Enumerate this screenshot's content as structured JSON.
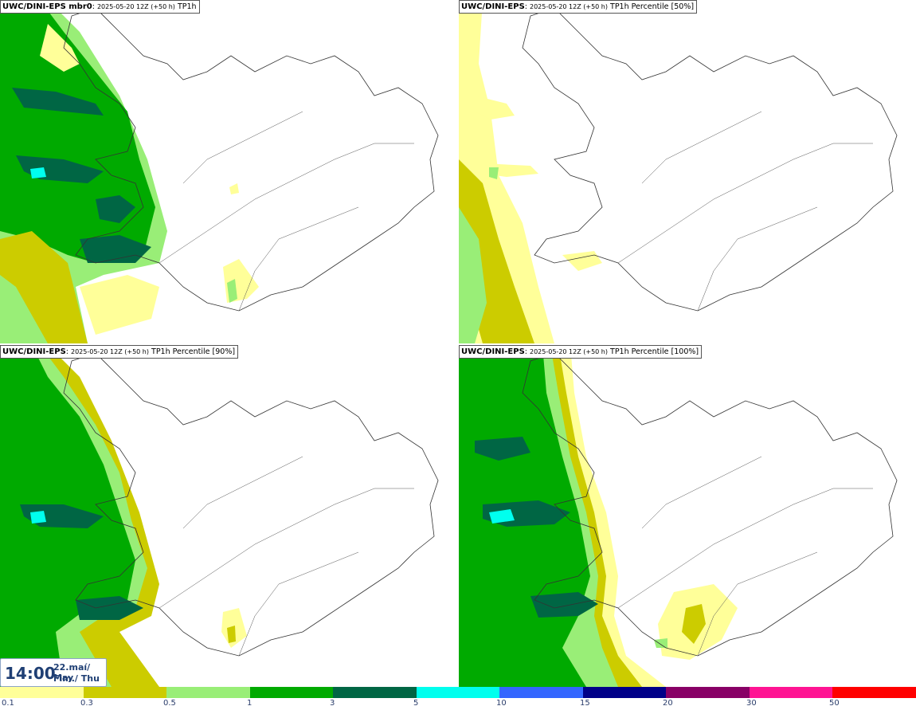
{
  "panels": [
    {
      "model": "UWC/DINI-EPS mbr0",
      "date": "2025-05-20 12Z (+50 h)",
      "product": "TP1h"
    },
    {
      "model": "UWC/DINI-EPS",
      "date": "2025-05-20 12Z (+50 h)",
      "product": "TP1h Percentile [50%]"
    },
    {
      "model": "UWC/DINI-EPS",
      "date": "2025-05-20 12Z (+50 h)",
      "product": "TP1h Percentile [90%]"
    },
    {
      "model": "UWC/DINI-EPS",
      "date": "2025-05-20 12Z (+50 h)",
      "product": "TP1h Percentile [100%]"
    }
  ],
  "valid_time": {
    "time": "14:00",
    "date_line1": "22.maí/ May",
    "date_line2": "Fim./ Thu"
  },
  "legend": {
    "ticks": [
      "0.1",
      "0.3",
      "0.5",
      "1",
      "3",
      "5",
      "10",
      "15",
      "20",
      "30",
      "50"
    ],
    "colors": [
      "#ffff99",
      "#cccc00",
      "#99ee77",
      "#00aa00",
      "#006644",
      "#00ffee",
      "#3366ff",
      "#000088",
      "#880066",
      "#ff1493",
      "#ff0000"
    ]
  }
}
